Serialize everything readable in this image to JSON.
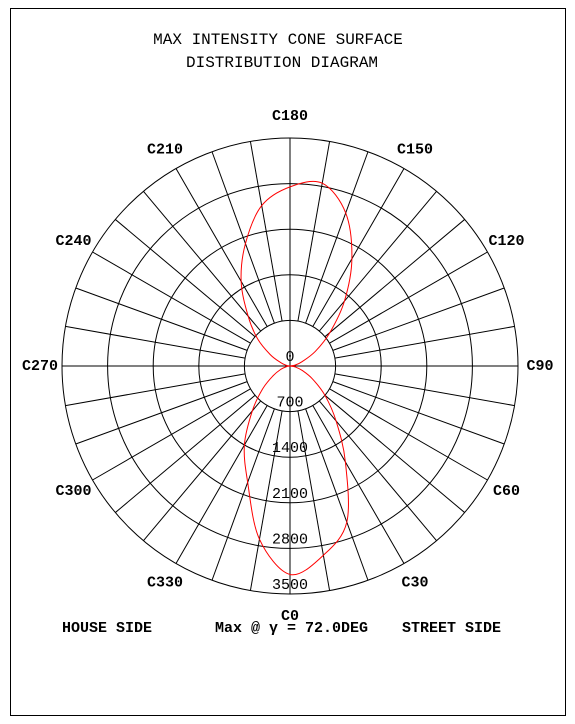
{
  "chart_data": {
    "type": "polar",
    "title": "MAX INTENSITY CONE SURFACE",
    "subtitle": "DISTRIBUTION DIAGRAM",
    "theta": [
      0,
      10,
      20,
      30,
      40,
      50,
      60,
      70,
      80,
      90,
      100,
      110,
      120,
      130,
      140,
      150,
      160,
      170,
      180,
      190,
      200,
      210,
      220,
      230,
      240,
      250,
      260,
      270,
      280,
      290,
      300,
      310,
      320,
      330,
      340,
      350
    ],
    "series": [
      {
        "color": "#ff0000",
        "values": [
          3200,
          2950,
          2550,
          1700,
          1100,
          700,
          400,
          200,
          80,
          0,
          80,
          200,
          450,
          800,
          1300,
          1900,
          2500,
          2850,
          2750,
          2500,
          2000,
          1500,
          1000,
          650,
          350,
          150,
          50,
          0,
          50,
          150,
          300,
          550,
          900,
          1400,
          1900,
          2700
        ]
      }
    ],
    "rlim": [
      0,
      3500
    ],
    "rticks": [
      0,
      700,
      1400,
      2100,
      2800,
      3500
    ],
    "angle_ticks": [
      {
        "value": 0,
        "label": "C0"
      },
      {
        "value": 30,
        "label": "C30"
      },
      {
        "value": 60,
        "label": "C60"
      },
      {
        "value": 90,
        "label": "C90"
      },
      {
        "value": 120,
        "label": "C120"
      },
      {
        "value": 150,
        "label": "C150"
      },
      {
        "value": 180,
        "label": "C180"
      },
      {
        "value": 210,
        "label": "C210"
      },
      {
        "value": 240,
        "label": "C240"
      },
      {
        "value": 270,
        "label": "C270"
      },
      {
        "value": 300,
        "label": "C300"
      },
      {
        "value": 330,
        "label": "C330"
      }
    ],
    "annotations": [
      "HOUSE SIDE",
      "Max @ γ = 72.0DEG",
      "STREET SIDE"
    ],
    "grid": true
  }
}
